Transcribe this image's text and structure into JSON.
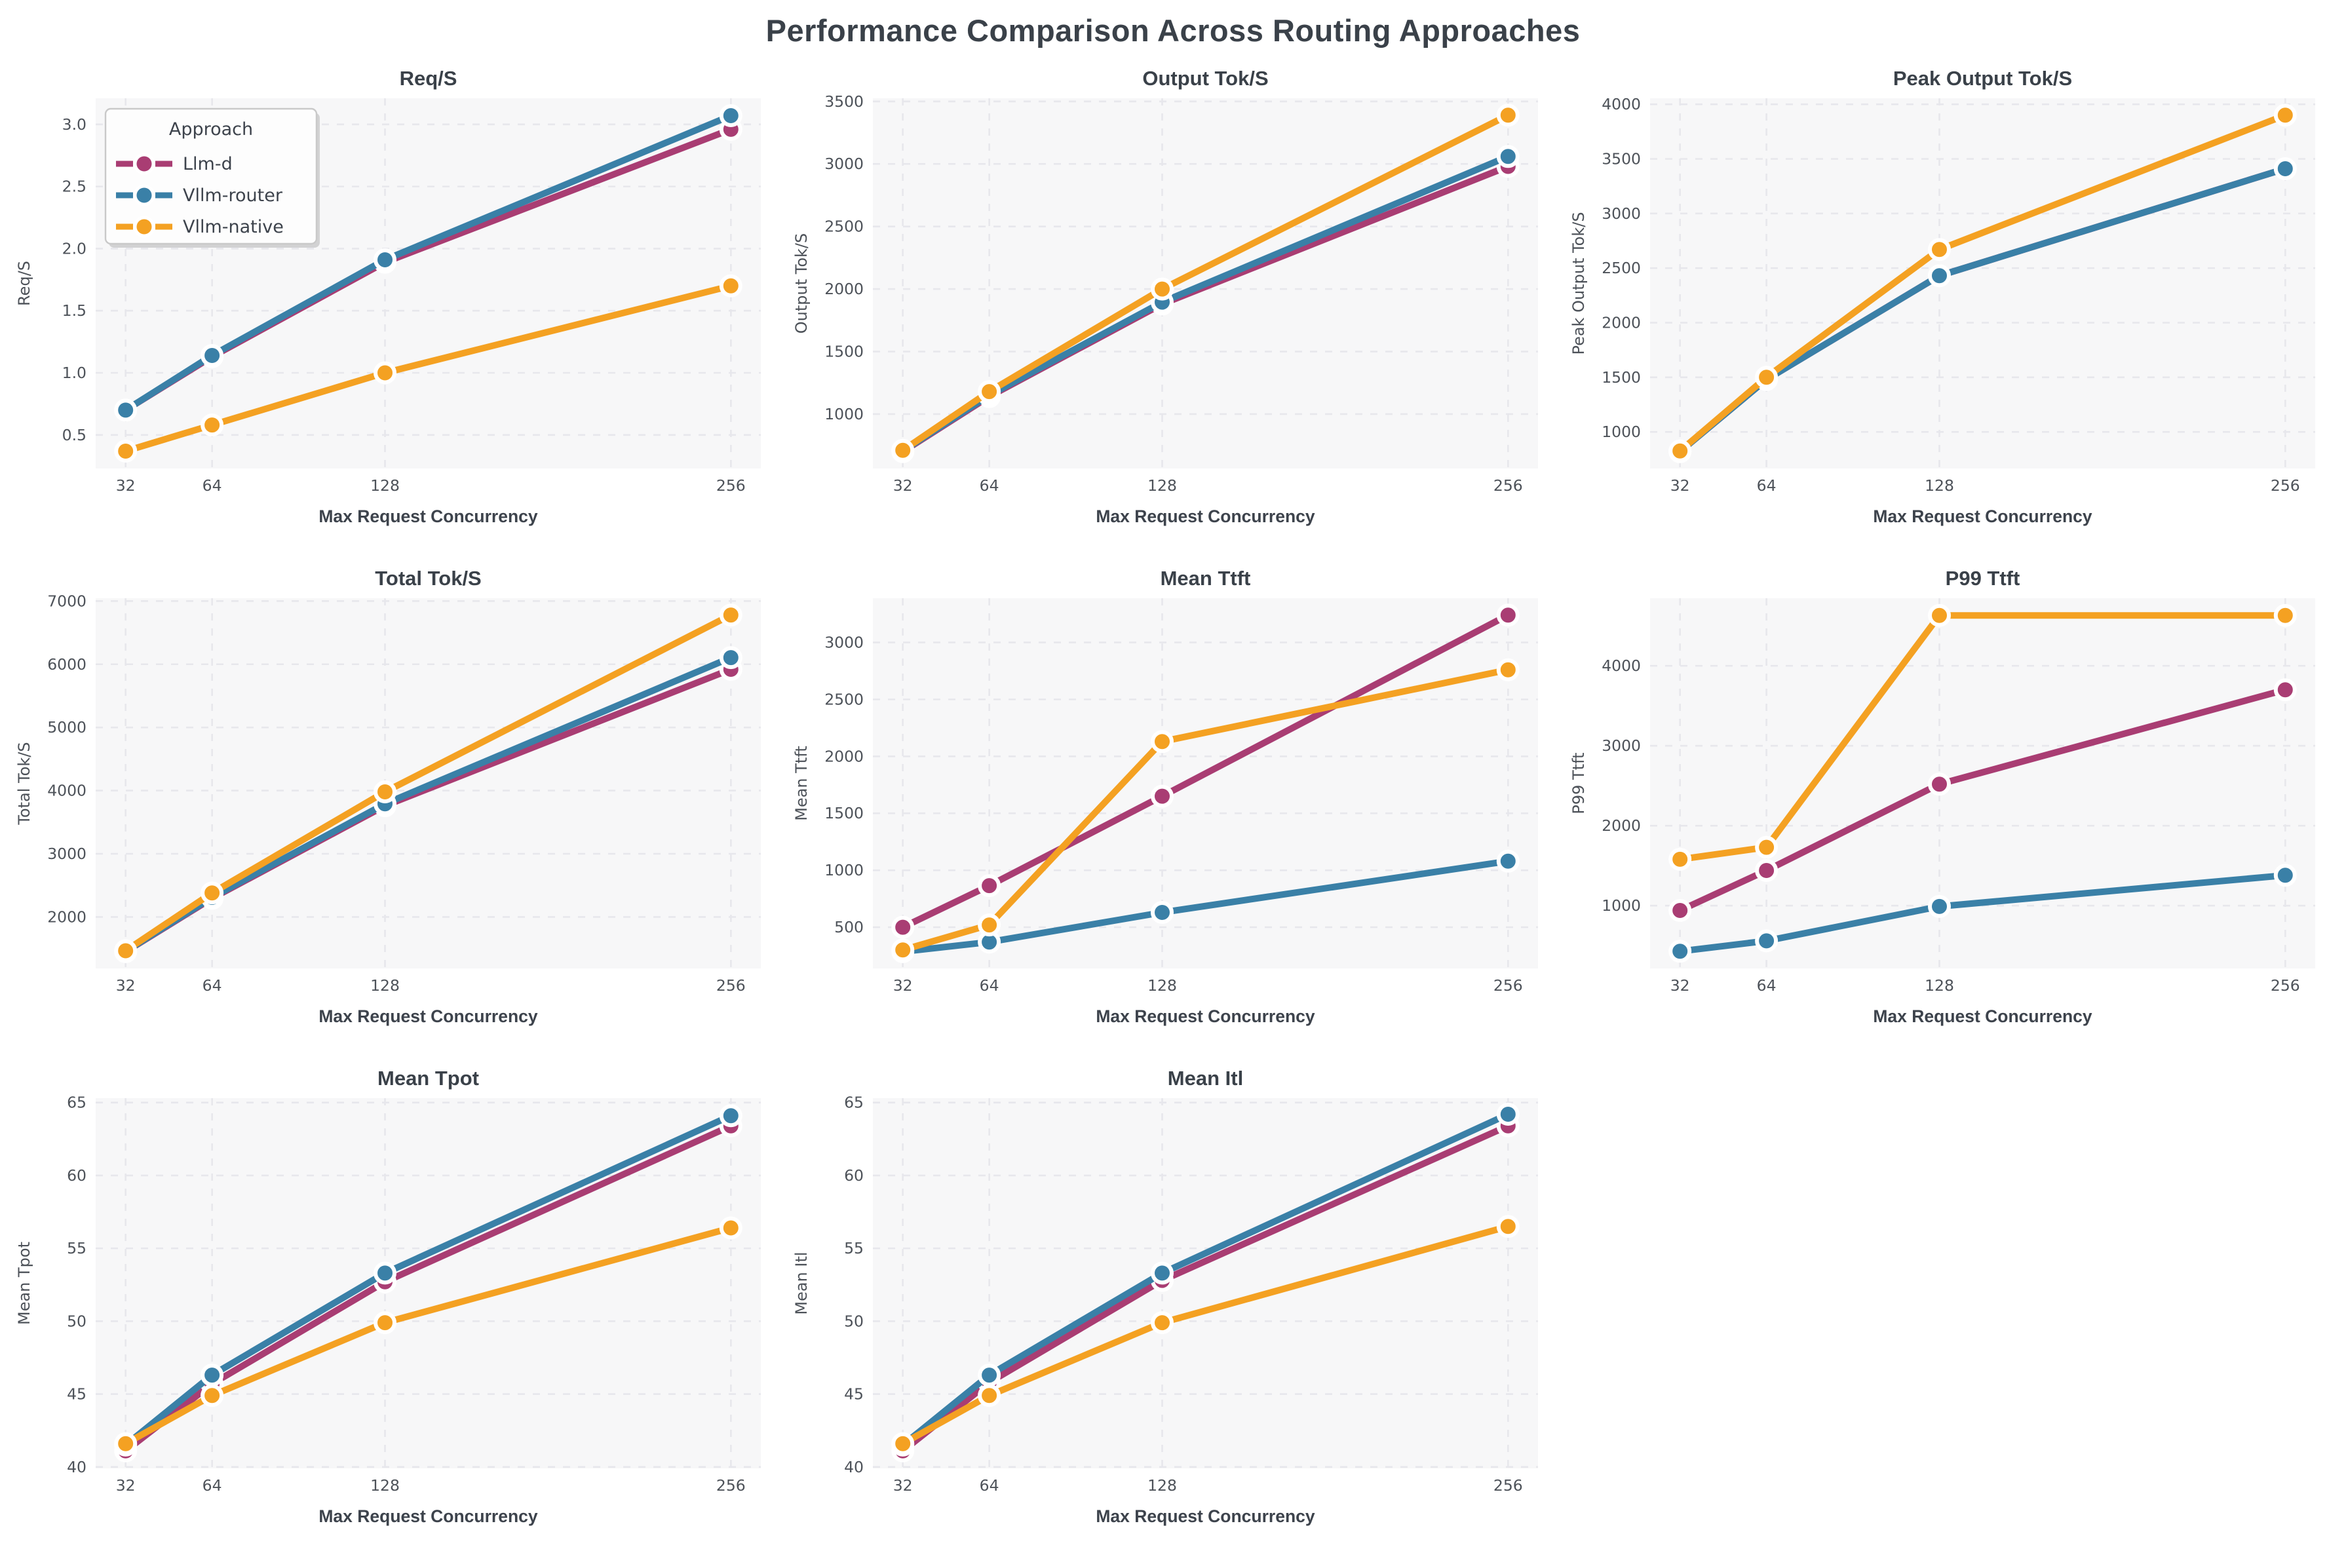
{
  "figure": {
    "title": "Performance Comparison Across Routing Approaches"
  },
  "colors": {
    "background": "#ffffff",
    "axes_background": "#f7f7f8",
    "grid": "#e7e7ec",
    "title": "#3a4149",
    "tick": "#4d5259",
    "label": "#3d434c",
    "legend_border": "#c9c9c9",
    "legend_fill": "#fdfdfd",
    "llm_d": "#a93d73",
    "vllm_router": "#3a80a7",
    "vllm_native": "#f4a122"
  },
  "legend": {
    "title": "Approach",
    "items": [
      {
        "label": "Llm-d",
        "color": "#a93d73"
      },
      {
        "label": "Vllm-router",
        "color": "#3a80a7"
      },
      {
        "label": "Vllm-native",
        "color": "#f4a122"
      }
    ]
  },
  "x_axis": {
    "label": "Max Request Concurrency",
    "tick_values": [
      32,
      64,
      128,
      256
    ],
    "tick_labels": [
      "32",
      "64",
      "128",
      "256"
    ]
  },
  "chart_data": [
    {
      "type": "line",
      "title": "Req/S",
      "ylabel": "Req/S",
      "show_legend": true,
      "x": [
        32,
        64,
        128,
        256
      ],
      "grid": true,
      "legend_position": "upper-left",
      "yticks": [
        0.5,
        1.0,
        1.5,
        2.0,
        2.5,
        3.0
      ],
      "ytick_labels": [
        "0.5",
        "1.0",
        "1.5",
        "2.0",
        "2.5",
        "3.0"
      ],
      "ylim": [
        0.23,
        3.21
      ],
      "series": [
        {
          "name": "Llm-d",
          "color": "#a93d73",
          "values": [
            0.7,
            1.13,
            1.89,
            2.96
          ]
        },
        {
          "name": "Vllm-router",
          "color": "#3a80a7",
          "values": [
            0.7,
            1.14,
            1.91,
            3.07
          ]
        },
        {
          "name": "Vllm-native",
          "color": "#f4a122",
          "values": [
            0.37,
            0.58,
            1.0,
            1.7
          ]
        }
      ]
    },
    {
      "type": "line",
      "title": "Output Tok/S",
      "ylabel": "Output Tok/S",
      "show_legend": false,
      "x": [
        32,
        64,
        128,
        256
      ],
      "grid": true,
      "yticks": [
        1000,
        1500,
        2000,
        2500,
        3000,
        3500
      ],
      "ytick_labels": [
        "1000",
        "1500",
        "2000",
        "2500",
        "3000",
        "3500"
      ],
      "ylim": [
        565,
        3525
      ],
      "series": [
        {
          "name": "Llm-d",
          "color": "#a93d73",
          "values": [
            700,
            1140,
            1880,
            2980
          ]
        },
        {
          "name": "Vllm-router",
          "color": "#3a80a7",
          "values": [
            705,
            1150,
            1895,
            3060
          ]
        },
        {
          "name": "Vllm-native",
          "color": "#f4a122",
          "values": [
            710,
            1180,
            2000,
            3390
          ]
        }
      ]
    },
    {
      "type": "line",
      "title": "Peak Output Tok/S",
      "ylabel": "Peak Output Tok/S",
      "show_legend": false,
      "x": [
        32,
        64,
        128,
        256
      ],
      "grid": true,
      "yticks": [
        1000,
        1500,
        2000,
        2500,
        3000,
        3500,
        4000
      ],
      "ytick_labels": [
        "1000",
        "1500",
        "2000",
        "2500",
        "3000",
        "3500",
        "4000"
      ],
      "ylim": [
        665,
        4055
      ],
      "series": [
        {
          "name": "Llm-d",
          "color": "#a93d73",
          "values": [
            820,
            1480,
            2430,
            3410
          ]
        },
        {
          "name": "Vllm-router",
          "color": "#3a80a7",
          "values": [
            820,
            1480,
            2430,
            3410
          ]
        },
        {
          "name": "Vllm-native",
          "color": "#f4a122",
          "values": [
            825,
            1500,
            2670,
            3900
          ]
        }
      ]
    },
    {
      "type": "line",
      "title": "Total Tok/S",
      "ylabel": "Total Tok/S",
      "show_legend": false,
      "x": [
        32,
        64,
        128,
        256
      ],
      "grid": true,
      "yticks": [
        2000,
        3000,
        4000,
        5000,
        6000,
        7000
      ],
      "ytick_labels": [
        "2000",
        "3000",
        "4000",
        "5000",
        "6000",
        "7000"
      ],
      "ylim": [
        1185,
        7045
      ],
      "series": [
        {
          "name": "Llm-d",
          "color": "#a93d73",
          "values": [
            1450,
            2295,
            3760,
            5920
          ]
        },
        {
          "name": "Vllm-router",
          "color": "#3a80a7",
          "values": [
            1455,
            2310,
            3790,
            6105
          ]
        },
        {
          "name": "Vllm-native",
          "color": "#f4a122",
          "values": [
            1465,
            2380,
            3980,
            6780
          ]
        }
      ]
    },
    {
      "type": "line",
      "title": "Mean Ttft",
      "ylabel": "Mean Ttft",
      "show_legend": false,
      "x": [
        32,
        64,
        128,
        256
      ],
      "grid": true,
      "yticks": [
        500,
        1000,
        1500,
        2000,
        2500,
        3000
      ],
      "ytick_labels": [
        "500",
        "1000",
        "1500",
        "2000",
        "2500",
        "3000"
      ],
      "ylim": [
        138,
        3388
      ],
      "series": [
        {
          "name": "Llm-d",
          "color": "#a93d73",
          "values": [
            500,
            865,
            1650,
            3240
          ]
        },
        {
          "name": "Vllm-router",
          "color": "#3a80a7",
          "values": [
            285,
            370,
            630,
            1080
          ]
        },
        {
          "name": "Vllm-native",
          "color": "#f4a122",
          "values": [
            300,
            520,
            2130,
            2760
          ]
        }
      ]
    },
    {
      "type": "line",
      "title": "P99 Ttft",
      "ylabel": "P99 Ttft",
      "show_legend": false,
      "x": [
        32,
        64,
        128,
        256
      ],
      "grid": true,
      "yticks": [
        1000,
        2000,
        3000,
        4000
      ],
      "ytick_labels": [
        "1000",
        "2000",
        "3000",
        "4000"
      ],
      "ylim": [
        215,
        4845
      ],
      "series": [
        {
          "name": "Llm-d",
          "color": "#a93d73",
          "values": [
            940,
            1440,
            2520,
            3700
          ]
        },
        {
          "name": "Vllm-router",
          "color": "#3a80a7",
          "values": [
            430,
            560,
            990,
            1380
          ]
        },
        {
          "name": "Vllm-native",
          "color": "#f4a122",
          "values": [
            1580,
            1730,
            4630,
            4630
          ]
        }
      ]
    },
    {
      "type": "line",
      "title": "Mean Tpot",
      "ylabel": "Mean Tpot",
      "show_legend": false,
      "x": [
        32,
        64,
        128,
        256
      ],
      "grid": true,
      "yticks": [
        40,
        45,
        50,
        55,
        60,
        65
      ],
      "ytick_labels": [
        "40",
        "45",
        "50",
        "55",
        "60",
        "65"
      ],
      "ylim": [
        39.9,
        65.3
      ],
      "series": [
        {
          "name": "Llm-d",
          "color": "#a93d73",
          "values": [
            41.1,
            45.7,
            52.7,
            63.4
          ]
        },
        {
          "name": "Vllm-router",
          "color": "#3a80a7",
          "values": [
            41.5,
            46.3,
            53.3,
            64.1
          ]
        },
        {
          "name": "Vllm-native",
          "color": "#f4a122",
          "values": [
            41.6,
            44.9,
            49.9,
            56.4
          ]
        }
      ]
    },
    {
      "type": "line",
      "title": "Mean Itl",
      "ylabel": "Mean Itl",
      "show_legend": false,
      "x": [
        32,
        64,
        128,
        256
      ],
      "grid": true,
      "yticks": [
        40,
        45,
        50,
        55,
        60,
        65
      ],
      "ytick_labels": [
        "40",
        "45",
        "50",
        "55",
        "60",
        "65"
      ],
      "ylim": [
        39.9,
        65.3
      ],
      "series": [
        {
          "name": "Llm-d",
          "color": "#a93d73",
          "values": [
            41.1,
            45.8,
            52.8,
            63.4
          ]
        },
        {
          "name": "Vllm-router",
          "color": "#3a80a7",
          "values": [
            41.5,
            46.3,
            53.3,
            64.2
          ]
        },
        {
          "name": "Vllm-native",
          "color": "#f4a122",
          "values": [
            41.6,
            44.9,
            49.9,
            56.5
          ]
        }
      ]
    }
  ]
}
